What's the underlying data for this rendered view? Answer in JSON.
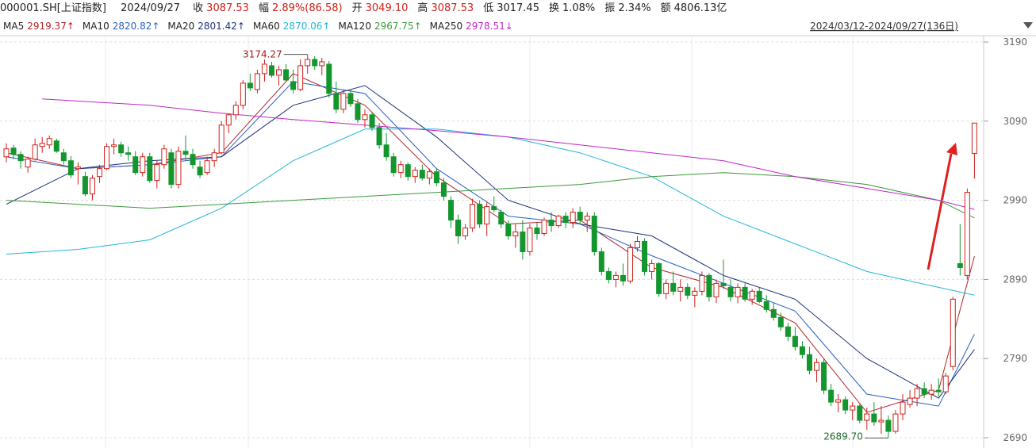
{
  "header": {
    "symbol": "000001.SH[上证指数]",
    "date": "2024/09/27",
    "items": [
      {
        "label": "收",
        "value": "3087.53"
      },
      {
        "label": "幅",
        "value": "2.89%(86.58)"
      },
      {
        "label": "开",
        "value": "3049.10"
      },
      {
        "label": "高",
        "value": "3087.53"
      },
      {
        "label": "低",
        "value": "3017.45"
      },
      {
        "label": "换",
        "value": "1.08%"
      },
      {
        "label": "振",
        "value": "2.34%"
      },
      {
        "label": "额",
        "value": "4806.13亿"
      }
    ]
  },
  "range": "2024/03/12-2024/09/27(136日)",
  "chart_data": {
    "type": "candlestick",
    "ylim": [
      2680,
      3198
    ],
    "yticks": [
      2690,
      2790,
      2890,
      2990,
      3090,
      3190
    ],
    "grid": true,
    "up_color": "#d0201a",
    "down_color": "#14962e",
    "high_label": "3174.27",
    "low_label": "2689.70",
    "ohlc": [
      [
        3045,
        3062,
        3038,
        3055
      ],
      [
        3056,
        3060,
        3042,
        3048
      ],
      [
        3048,
        3052,
        3030,
        3040
      ],
      [
        3032,
        3045,
        3025,
        3042
      ],
      [
        3042,
        3068,
        3040,
        3060
      ],
      [
        3058,
        3070,
        3050,
        3062
      ],
      [
        3060,
        3072,
        3055,
        3068
      ],
      [
        3065,
        3068,
        3050,
        3052
      ],
      [
        3050,
        3055,
        3035,
        3040
      ],
      [
        3040,
        3046,
        3018,
        3022
      ],
      [
        3030,
        3038,
        3010,
        3032
      ],
      [
        3020,
        3026,
        2995,
        2998
      ],
      [
        2998,
        3022,
        2990,
        3018
      ],
      [
        3020,
        3035,
        3012,
        3030
      ],
      [
        3030,
        3062,
        3028,
        3058
      ],
      [
        3058,
        3068,
        3048,
        3060
      ],
      [
        3060,
        3064,
        3045,
        3050
      ],
      [
        3050,
        3058,
        3040,
        3048
      ],
      [
        3045,
        3052,
        3022,
        3025
      ],
      [
        3025,
        3050,
        3020,
        3045
      ],
      [
        3045,
        3050,
        3012,
        3015
      ],
      [
        3015,
        3040,
        3005,
        3035
      ],
      [
        3035,
        3060,
        3030,
        3055
      ],
      [
        3050,
        3055,
        3005,
        3010
      ],
      [
        3010,
        3058,
        3005,
        3052
      ],
      [
        3052,
        3072,
        3040,
        3048
      ],
      [
        3048,
        3055,
        3030,
        3035
      ],
      [
        3032,
        3040,
        3018,
        3022
      ],
      [
        3025,
        3045,
        3022,
        3040
      ],
      [
        3040,
        3055,
        3032,
        3050
      ],
      [
        3050,
        3090,
        3048,
        3085
      ],
      [
        3085,
        3100,
        3075,
        3098
      ],
      [
        3098,
        3115,
        3092,
        3110
      ],
      [
        3110,
        3142,
        3105,
        3138
      ],
      [
        3138,
        3150,
        3128,
        3132
      ],
      [
        3130,
        3155,
        3125,
        3150
      ],
      [
        3150,
        3168,
        3140,
        3162
      ],
      [
        3160,
        3165,
        3145,
        3148
      ],
      [
        3148,
        3160,
        3135,
        3155
      ],
      [
        3155,
        3162,
        3140,
        3142
      ],
      [
        3140,
        3155,
        3125,
        3130
      ],
      [
        3130,
        3168,
        3128,
        3160
      ],
      [
        3160,
        3174.27,
        3150,
        3168
      ],
      [
        3168,
        3172,
        3155,
        3160
      ],
      [
        3160,
        3170,
        3148,
        3165
      ],
      [
        3162,
        3166,
        3120,
        3125
      ],
      [
        3125,
        3140,
        3100,
        3105
      ],
      [
        3105,
        3130,
        3100,
        3125
      ],
      [
        3125,
        3130,
        3108,
        3112
      ],
      [
        3112,
        3118,
        3088,
        3092
      ],
      [
        3092,
        3105,
        3082,
        3098
      ],
      [
        3098,
        3102,
        3078,
        3082
      ],
      [
        3082,
        3088,
        3055,
        3060
      ],
      [
        3060,
        3075,
        3040,
        3045
      ],
      [
        3045,
        3050,
        3020,
        3025
      ],
      [
        3025,
        3040,
        3018,
        3035
      ],
      [
        3035,
        3038,
        3015,
        3020
      ],
      [
        3020,
        3032,
        3012,
        3028
      ],
      [
        3028,
        3035,
        3015,
        3018
      ],
      [
        3018,
        3030,
        3010,
        3026
      ],
      [
        3026,
        3030,
        3008,
        3012
      ],
      [
        3012,
        3018,
        2990,
        2995
      ],
      [
        2990,
        2995,
        2955,
        2965
      ],
      [
        2965,
        2972,
        2935,
        2945
      ],
      [
        2945,
        2960,
        2940,
        2955
      ],
      [
        2955,
        2992,
        2950,
        2985
      ],
      [
        2985,
        2990,
        2955,
        2960
      ],
      [
        2960,
        2988,
        2945,
        2982
      ],
      [
        2982,
        2995,
        2975,
        2978
      ],
      [
        2975,
        2978,
        2955,
        2960
      ],
      [
        2960,
        2965,
        2940,
        2945
      ],
      [
        2945,
        2960,
        2930,
        2950
      ],
      [
        2950,
        2965,
        2915,
        2925
      ],
      [
        2925,
        2960,
        2920,
        2955
      ],
      [
        2955,
        2962,
        2940,
        2948
      ],
      [
        2948,
        2968,
        2945,
        2965
      ],
      [
        2965,
        2975,
        2950,
        2958
      ],
      [
        2958,
        2972,
        2955,
        2970
      ],
      [
        2970,
        2975,
        2955,
        2962
      ],
      [
        2962,
        2980,
        2955,
        2975
      ],
      [
        2975,
        2982,
        2960,
        2965
      ],
      [
        2965,
        2975,
        2950,
        2970
      ],
      [
        2970,
        2975,
        2920,
        2925
      ],
      [
        2925,
        2930,
        2895,
        2900
      ],
      [
        2900,
        2905,
        2885,
        2890
      ],
      [
        2890,
        2900,
        2880,
        2895
      ],
      [
        2895,
        2910,
        2882,
        2888
      ],
      [
        2888,
        2935,
        2885,
        2930
      ],
      [
        2930,
        2945,
        2925,
        2938
      ],
      [
        2938,
        2942,
        2895,
        2900
      ],
      [
        2900,
        2915,
        2890,
        2910
      ],
      [
        2910,
        2912,
        2868,
        2872
      ],
      [
        2872,
        2890,
        2865,
        2885
      ],
      [
        2885,
        2900,
        2870,
        2875
      ],
      [
        2875,
        2890,
        2862,
        2880
      ],
      [
        2880,
        2885,
        2865,
        2870
      ],
      [
        2870,
        2880,
        2855,
        2875
      ],
      [
        2875,
        2900,
        2870,
        2895
      ],
      [
        2895,
        2898,
        2862,
        2868
      ],
      [
        2868,
        2890,
        2860,
        2885
      ],
      [
        2885,
        2915,
        2878,
        2882
      ],
      [
        2880,
        2890,
        2862,
        2868
      ],
      [
        2868,
        2885,
        2860,
        2880
      ],
      [
        2880,
        2885,
        2862,
        2865
      ],
      [
        2865,
        2878,
        2858,
        2875
      ],
      [
        2875,
        2880,
        2860,
        2862
      ],
      [
        2862,
        2870,
        2848,
        2852
      ],
      [
        2852,
        2860,
        2838,
        2842
      ],
      [
        2842,
        2848,
        2825,
        2830
      ],
      [
        2830,
        2835,
        2812,
        2818
      ],
      [
        2818,
        2830,
        2800,
        2805
      ],
      [
        2805,
        2812,
        2790,
        2795
      ],
      [
        2795,
        2805,
        2770,
        2775
      ],
      [
        2775,
        2790,
        2760,
        2785
      ],
      [
        2785,
        2790,
        2745,
        2750
      ],
      [
        2750,
        2758,
        2730,
        2735
      ],
      [
        2735,
        2745,
        2722,
        2738
      ],
      [
        2738,
        2742,
        2720,
        2725
      ],
      [
        2725,
        2735,
        2712,
        2730
      ],
      [
        2730,
        2732,
        2708,
        2712
      ],
      [
        2712,
        2728,
        2700,
        2720
      ],
      [
        2720,
        2735,
        2705,
        2710
      ],
      [
        2710,
        2730,
        2695,
        2712
      ],
      [
        2712,
        2718,
        2689.7,
        2698
      ],
      [
        2698,
        2725,
        2695,
        2720
      ],
      [
        2720,
        2745,
        2712,
        2735
      ],
      [
        2732,
        2750,
        2728,
        2740
      ],
      [
        2740,
        2758,
        2730,
        2752
      ],
      [
        2752,
        2760,
        2740,
        2745
      ],
      [
        2745,
        2758,
        2738,
        2750
      ],
      [
        2750,
        2765,
        2742,
        2748
      ],
      [
        2748,
        2772,
        2745,
        2768
      ],
      [
        2780,
        2868,
        2775,
        2865
      ],
      [
        2910,
        2960,
        2895,
        2905
      ],
      [
        2895,
        3005,
        2890,
        3000
      ],
      [
        3049.1,
        3087.53,
        3017.45,
        3087.53
      ]
    ],
    "series": [
      {
        "name": "MA5",
        "label": "2919.37↑",
        "color": "#b0262c",
        "x": [
          0,
          10,
          20,
          30,
          40,
          50,
          60,
          70,
          80,
          90,
          100,
          110,
          120,
          130,
          135
        ],
        "values": [
          3050,
          3030,
          3035,
          3050,
          3150,
          3110,
          3020,
          2960,
          2965,
          2905,
          2880,
          2835,
          2722,
          2750,
          2919.37
        ]
      },
      {
        "name": "MA10",
        "label": "2820.82↑",
        "color": "#2a5fc0",
        "x": [
          0,
          10,
          20,
          30,
          40,
          50,
          60,
          70,
          80,
          90,
          100,
          110,
          120,
          130,
          135
        ],
        "values": [
          3045,
          3030,
          3035,
          3045,
          3140,
          3125,
          3030,
          2970,
          2960,
          2920,
          2885,
          2850,
          2745,
          2730,
          2820.82
        ]
      },
      {
        "name": "MA20",
        "label": "2801.42↑",
        "color": "#1c2f7a",
        "x": [
          0,
          10,
          20,
          30,
          40,
          50,
          60,
          70,
          80,
          90,
          100,
          110,
          120,
          130,
          135
        ],
        "values": [
          2985,
          3030,
          3040,
          3045,
          3110,
          3135,
          3070,
          2990,
          2960,
          2945,
          2895,
          2865,
          2790,
          2740,
          2801.42
        ]
      },
      {
        "name": "MA60",
        "label": "2870.06↑",
        "color": "#22b6d8",
        "x": [
          0,
          10,
          20,
          30,
          40,
          50,
          60,
          70,
          80,
          90,
          100,
          110,
          120,
          130,
          135
        ],
        "values": [
          2922,
          2928,
          2940,
          2980,
          3040,
          3080,
          3080,
          3070,
          3050,
          3020,
          2970,
          2935,
          2900,
          2880,
          2870.06
        ]
      },
      {
        "name": "MA120",
        "label": "2967.75↑",
        "color": "#3a9a3a",
        "x": [
          0,
          10,
          20,
          30,
          40,
          50,
          60,
          70,
          80,
          90,
          100,
          110,
          120,
          130,
          135
        ],
        "values": [
          2990,
          2985,
          2980,
          2985,
          2990,
          2995,
          3000,
          3005,
          3010,
          3020,
          3025,
          3020,
          3010,
          2990,
          2967.75
        ]
      },
      {
        "name": "MA250",
        "label": "2978.51↓",
        "color": "#c026c8",
        "x": [
          5,
          20,
          30,
          40,
          50,
          60,
          70,
          80,
          90,
          100,
          110,
          120,
          130,
          135
        ],
        "values": [
          3118,
          3110,
          3100,
          3092,
          3085,
          3078,
          3070,
          3060,
          3050,
          3040,
          3020,
          3005,
          2990,
          2978.51
        ]
      }
    ]
  }
}
